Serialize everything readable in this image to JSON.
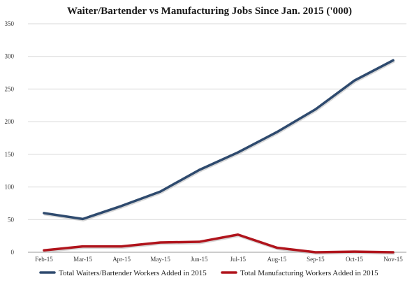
{
  "chart_data": {
    "type": "line",
    "title": "Waiter/Bartender vs Manufacturing Jobs Since Jan. 2015 ('000)",
    "xlabel": "",
    "ylabel": "",
    "categories": [
      "Feb-15",
      "Mar-15",
      "Apr-15",
      "May-15",
      "Jun-15",
      "Jul-15",
      "Aug-15",
      "Sep-15",
      "Oct-15",
      "Nov-15"
    ],
    "ylim": [
      0,
      350
    ],
    "yticks": [
      0,
      50,
      100,
      150,
      200,
      250,
      300,
      350
    ],
    "grid": true,
    "legend_position": "bottom",
    "series": [
      {
        "name": "Total Waiters/Bartender Workers Added in 2015",
        "color": "#2e4a6e",
        "values": [
          60,
          51,
          71,
          93,
          126,
          153,
          184,
          219,
          263,
          294
        ]
      },
      {
        "name": "Total Manufacturing Workers Added in 2015",
        "color": "#b0141c",
        "values": [
          3,
          9,
          9,
          15,
          16,
          27,
          7,
          0,
          1,
          0
        ]
      }
    ]
  }
}
